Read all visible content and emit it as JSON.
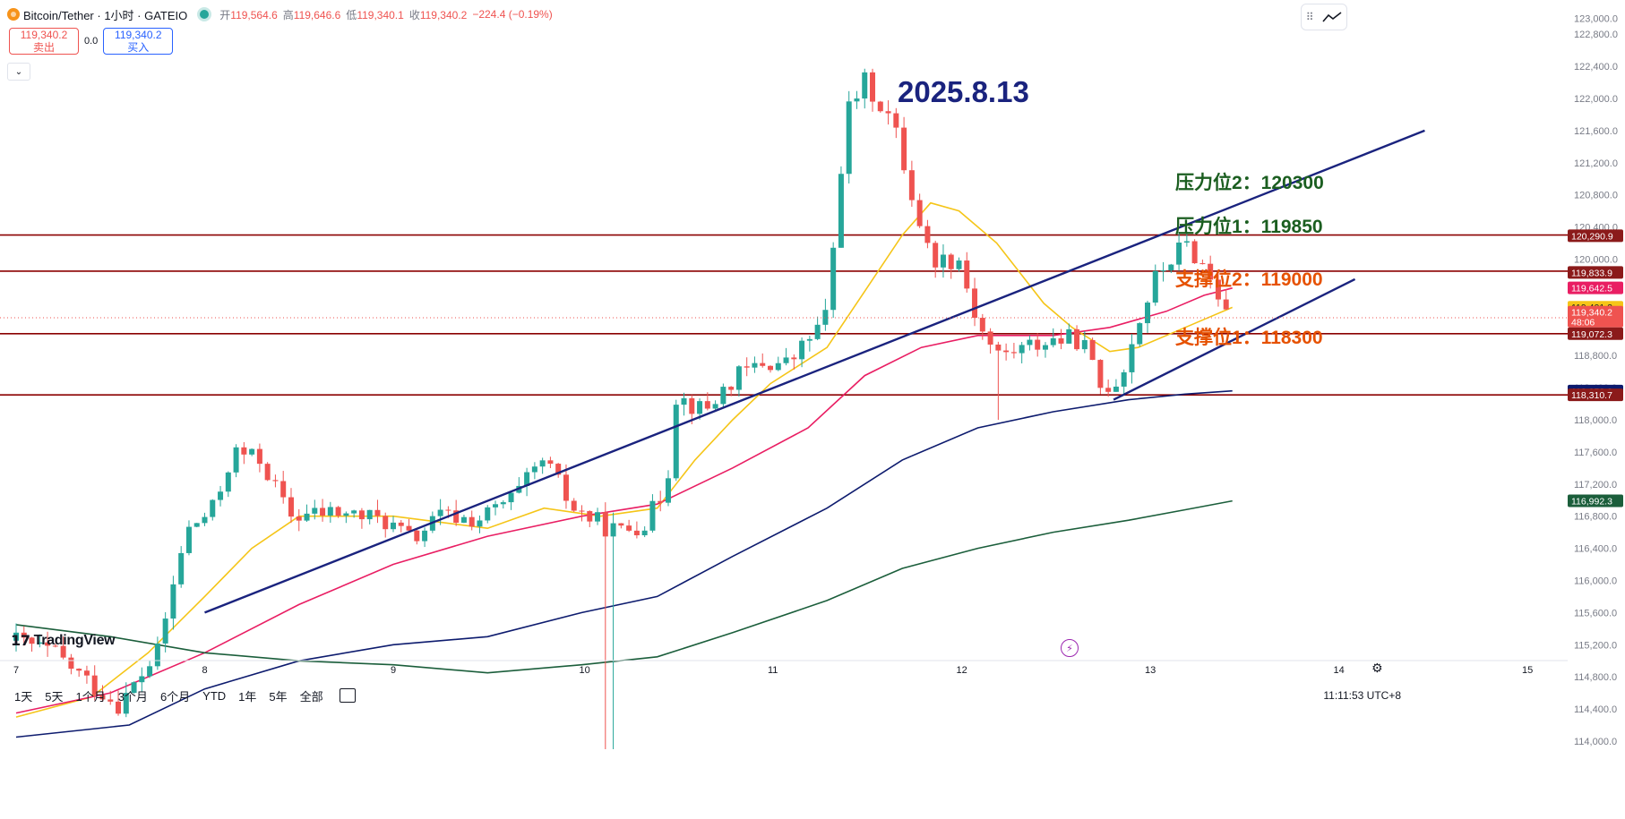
{
  "header": {
    "title": "Bitcoin/Tether · 1小时 · GATEIO",
    "coin_icon": "bitcoin-icon",
    "ohlc": {
      "open_label": "开",
      "open": "119,564.6",
      "high_label": "高",
      "high": "119,646.6",
      "low_label": "低",
      "low": "119,340.1",
      "close_label": "收",
      "close": "119,340.2",
      "change": "−224.4 (−0.19%)"
    }
  },
  "quote": {
    "sell_price": "119,340.2",
    "sell_label": "卖出",
    "spread": "0.0",
    "buy_price": "119,340.2",
    "buy_label": "买入"
  },
  "annotations": {
    "date": "2025.8.13",
    "resistance2": "压力位2：120300",
    "resistance1": "压力位1：119850",
    "support2": "支撑位2：119000",
    "support1": "支撑位1：118300"
  },
  "bottom_bar": {
    "ranges": [
      "1天",
      "5天",
      "1个月",
      "3个月",
      "6个月",
      "YTD",
      "1年",
      "5年",
      "全部"
    ],
    "clock": "11:11:53 UTC+8"
  },
  "branding": {
    "logo_text": "TradingView"
  },
  "colors": {
    "up": "#26a69a",
    "down": "#ef5350",
    "ma_fast": "#f5c518",
    "ma_mid": "#e91e63",
    "ma_slow": "#0d1b6e",
    "ma_long": "#1b5e3b",
    "trendline": "#1a237e",
    "level_line": "#8b0000"
  },
  "chart_data": {
    "type": "candlestick",
    "symbol": "Bitcoin/Tether",
    "interval": "1小时",
    "exchange": "GATEIO",
    "y_ticks": [
      123000,
      122800,
      122400,
      122000,
      121600,
      121200,
      120800,
      120400,
      120000,
      118800,
      118400,
      118000,
      117600,
      117200,
      116800,
      116400,
      116000,
      115600,
      115200,
      114800,
      114400,
      114000
    ],
    "ylim": [
      113700,
      123100
    ],
    "x_ticks": [
      "7",
      "8",
      "9",
      "10",
      "11",
      "12",
      "13",
      "14",
      "15"
    ],
    "price_labels": [
      {
        "value": 120290.9,
        "text": "120,290.9",
        "color": "#8b1a1a"
      },
      {
        "value": 119833.9,
        "text": "119,833.9",
        "color": "#8b1a1a"
      },
      {
        "value": 119642.5,
        "text": "119,642.5",
        "color": "#e91e63"
      },
      {
        "value": 119401.2,
        "text": "119,401.2",
        "color": "#f5c518",
        "dark_text": true
      },
      {
        "value": 119340.2,
        "text": "119,340.2",
        "extra": "48:06",
        "color": "#ef5350"
      },
      {
        "value": 119072.3,
        "text": "119,072.3",
        "color": "#8b1a1a"
      },
      {
        "value": 118358.3,
        "text": "118,358.3",
        "color": "#0d1b6e"
      },
      {
        "value": 118310.7,
        "text": "118,310.7",
        "color": "#8b1a1a"
      },
      {
        "value": 116992.3,
        "text": "116,992.3",
        "color": "#1b5e3b"
      }
    ],
    "horizontal_levels": [
      120300,
      119850,
      119072,
      118310
    ],
    "close_waypoints": [
      [
        7.0,
        115250
      ],
      [
        7.2,
        115100
      ],
      [
        7.4,
        114700
      ],
      [
        7.55,
        114450
      ],
      [
        7.75,
        115100
      ],
      [
        7.9,
        116600
      ],
      [
        8.05,
        116900
      ],
      [
        8.15,
        117600
      ],
      [
        8.3,
        117500
      ],
      [
        8.45,
        116800
      ],
      [
        8.7,
        116850
      ],
      [
        8.95,
        116750
      ],
      [
        9.1,
        116500
      ],
      [
        9.25,
        116800
      ],
      [
        9.45,
        116750
      ],
      [
        9.65,
        117050
      ],
      [
        9.8,
        117500
      ],
      [
        9.95,
        116900
      ],
      [
        10.1,
        116700
      ],
      [
        10.2,
        116600
      ],
      [
        10.35,
        116750
      ],
      [
        10.45,
        117200
      ],
      [
        10.5,
        118300
      ],
      [
        10.65,
        118100
      ],
      [
        10.8,
        118500
      ],
      [
        10.95,
        118700
      ],
      [
        11.1,
        118700
      ],
      [
        11.3,
        119300
      ],
      [
        11.4,
        121800
      ],
      [
        11.5,
        122200
      ],
      [
        11.65,
        121700
      ],
      [
        11.75,
        120800
      ],
      [
        11.85,
        120000
      ],
      [
        12.0,
        120000
      ],
      [
        12.1,
        119200
      ],
      [
        12.2,
        118800
      ],
      [
        12.35,
        118900
      ],
      [
        12.5,
        119000
      ],
      [
        12.65,
        119000
      ],
      [
        12.75,
        118400
      ],
      [
        12.85,
        118500
      ],
      [
        12.95,
        119200
      ],
      [
        13.05,
        119800
      ],
      [
        13.2,
        120200
      ],
      [
        13.3,
        119900
      ],
      [
        13.38,
        119550
      ],
      [
        13.45,
        119340
      ]
    ],
    "moving_averages": [
      {
        "color": "#f5c518",
        "points": [
          [
            7.0,
            114300
          ],
          [
            7.4,
            114550
          ],
          [
            7.7,
            115100
          ],
          [
            8.0,
            115800
          ],
          [
            8.25,
            116400
          ],
          [
            8.5,
            116800
          ],
          [
            9.0,
            116800
          ],
          [
            9.5,
            116650
          ],
          [
            9.8,
            116900
          ],
          [
            10.1,
            116800
          ],
          [
            10.4,
            116900
          ],
          [
            10.6,
            117500
          ],
          [
            10.8,
            118000
          ],
          [
            11.0,
            118450
          ],
          [
            11.3,
            118900
          ],
          [
            11.5,
            119600
          ],
          [
            11.7,
            120300
          ],
          [
            11.85,
            120700
          ],
          [
            12.0,
            120600
          ],
          [
            12.2,
            120200
          ],
          [
            12.45,
            119450
          ],
          [
            12.6,
            119150
          ],
          [
            12.8,
            118850
          ],
          [
            12.95,
            118900
          ],
          [
            13.1,
            119050
          ],
          [
            13.3,
            119250
          ],
          [
            13.45,
            119400
          ]
        ]
      },
      {
        "color": "#e91e63",
        "points": [
          [
            7.0,
            114350
          ],
          [
            7.5,
            114600
          ],
          [
            8.0,
            115100
          ],
          [
            8.5,
            115700
          ],
          [
            9.0,
            116200
          ],
          [
            9.5,
            116550
          ],
          [
            10.0,
            116800
          ],
          [
            10.4,
            116950
          ],
          [
            10.8,
            117400
          ],
          [
            11.2,
            117900
          ],
          [
            11.5,
            118550
          ],
          [
            11.8,
            118900
          ],
          [
            12.1,
            119050
          ],
          [
            12.5,
            119050
          ],
          [
            12.8,
            119150
          ],
          [
            13.1,
            119350
          ],
          [
            13.3,
            119550
          ],
          [
            13.45,
            119640
          ]
        ]
      },
      {
        "color": "#0d1b6e",
        "points": [
          [
            7.0,
            114050
          ],
          [
            7.6,
            114200
          ],
          [
            8.0,
            114650
          ],
          [
            8.5,
            115000
          ],
          [
            9.0,
            115200
          ],
          [
            9.5,
            115300
          ],
          [
            10.0,
            115600
          ],
          [
            10.4,
            115800
          ],
          [
            10.8,
            116300
          ],
          [
            11.3,
            116900
          ],
          [
            11.7,
            117500
          ],
          [
            12.1,
            117900
          ],
          [
            12.5,
            118100
          ],
          [
            12.9,
            118250
          ],
          [
            13.2,
            118320
          ],
          [
            13.45,
            118360
          ]
        ]
      },
      {
        "color": "#1b5e3b",
        "points": [
          [
            7.0,
            115450
          ],
          [
            7.5,
            115300
          ],
          [
            8.0,
            115100
          ],
          [
            8.5,
            115000
          ],
          [
            9.0,
            114950
          ],
          [
            9.5,
            114850
          ],
          [
            10.0,
            114950
          ],
          [
            10.4,
            115050
          ],
          [
            10.8,
            115350
          ],
          [
            11.3,
            115750
          ],
          [
            11.7,
            116150
          ],
          [
            12.1,
            116400
          ],
          [
            12.5,
            116600
          ],
          [
            12.9,
            116750
          ],
          [
            13.2,
            116880
          ],
          [
            13.45,
            116990
          ]
        ]
      }
    ],
    "trendlines": [
      [
        [
          8.0,
          115600
        ],
        [
          13.15,
          120300
        ]
      ],
      [
        [
          12.82,
          118250
        ],
        [
          14.1,
          119750
        ]
      ],
      [
        [
          13.15,
          120300
        ],
        [
          14.5,
          121200
        ]
      ]
    ],
    "lower_channel_extension": [
      [
        12.82,
        118250
      ],
      [
        14.1,
        119750
      ]
    ]
  }
}
